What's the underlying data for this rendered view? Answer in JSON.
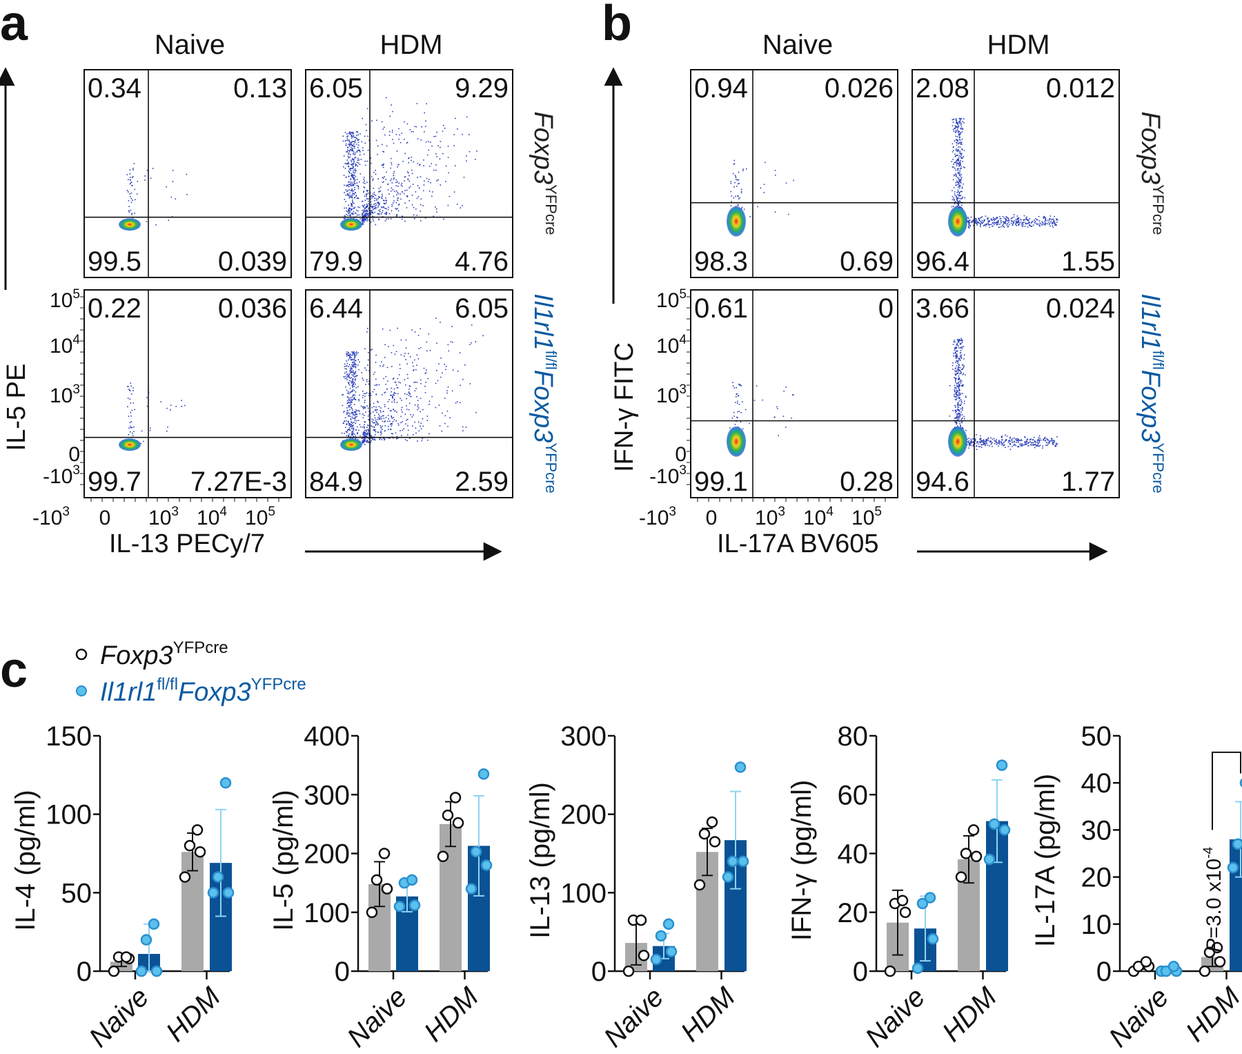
{
  "panels": {
    "a": "a",
    "b": "b",
    "c": "c"
  },
  "flow": {
    "col_headers": [
      "Naive",
      "HDM"
    ],
    "row_labels": [
      {
        "name": "Foxp3",
        "sup": "YFPcre",
        "color": "#222222"
      },
      {
        "name1": "Il1rl1",
        "sup1": "fl/fl",
        "name2": "Foxp3",
        "sup2": "YFPcre",
        "color": "#0b5aa2"
      }
    ],
    "tick_labels": {
      "y": [
        "10",
        "10",
        "10",
        "0",
        "-10"
      ],
      "y_exp": [
        "5",
        "4",
        "3",
        "",
        "3"
      ],
      "x": [
        "-10",
        "0",
        "10",
        "10",
        "10"
      ],
      "x_exp": [
        "3",
        "",
        "3",
        "4",
        "5"
      ]
    },
    "a": {
      "y_label": "IL-5 PE",
      "x_label": "IL-13 PECy/7",
      "quadrants": [
        [
          [
            "0.34",
            "0.13",
            "99.5",
            "0.039"
          ],
          [
            "6.05",
            "9.29",
            "79.9",
            "4.76"
          ]
        ],
        [
          [
            "0.22",
            "0.036",
            "99.7",
            "7.27E-3"
          ],
          [
            "6.44",
            "6.05",
            "84.9",
            "2.59"
          ]
        ]
      ]
    },
    "b": {
      "y_label": "IFN-γ FITC",
      "x_label": "IL-17A BV605",
      "quadrants": [
        [
          [
            "0.94",
            "0.026",
            "98.3",
            "0.69"
          ],
          [
            "2.08",
            "0.012",
            "96.4",
            "1.55"
          ]
        ],
        [
          [
            "0.61",
            "0",
            "99.1",
            "0.28"
          ],
          [
            "3.66",
            "0.024",
            "94.6",
            "1.77"
          ]
        ]
      ]
    }
  },
  "legend": [
    {
      "name": "Foxp3",
      "sup": "YFPcre",
      "color": "#ffffff"
    },
    {
      "name1": "Il1rl1",
      "sup1": "fl/fl",
      "name2": "Foxp3",
      "sup2": "YFPcre",
      "color": "#5bc0eb"
    }
  ],
  "colors": {
    "bar_ctrl": "#a9a9a9",
    "bar_ko": "#0a5294",
    "pt_ko": "#5bc0eb",
    "err_ko": "#8fd3f4",
    "legend_ko_text": "#0b5aa2"
  },
  "chart_data": [
    {
      "type": "bar",
      "ylabel": "IL-4 (pg/ml)",
      "ylim": [
        0,
        150
      ],
      "yticks": [
        "0",
        "50",
        "100",
        "150"
      ],
      "categories": [
        "Naive",
        "HDM"
      ],
      "series": [
        {
          "name": "Foxp3 YFPcre",
          "means": [
            6,
            76
          ],
          "sd": [
            3,
            12
          ],
          "points": [
            [
              0,
              8,
              9,
              9
            ],
            [
              60,
              76,
              80,
              90
            ]
          ]
        },
        {
          "name": "Il1rl1 fl/fl Foxp3 YFPcre",
          "means": [
            11,
            69
          ],
          "sd": [
            19,
            34
          ],
          "points": [
            [
              0,
              0,
              20,
              30
            ],
            [
              50,
              50,
              60,
              120
            ]
          ]
        }
      ]
    },
    {
      "type": "bar",
      "ylabel": "IL-5 (pg/ml)",
      "ylim": [
        0,
        400
      ],
      "yticks": [
        "0",
        "100",
        "200",
        "300",
        "400"
      ],
      "categories": [
        "Naive",
        "HDM"
      ],
      "series": [
        {
          "name": "Foxp3 YFPcre",
          "means": [
            148,
            250
          ],
          "sd": [
            38,
            38
          ],
          "points": [
            [
              100,
              140,
              155,
              200
            ],
            [
              195,
              252,
              265,
              295
            ]
          ]
        },
        {
          "name": "Il1rl1 fl/fl Foxp3 YFPcre",
          "means": [
            127,
            213
          ],
          "sd": [
            26,
            85
          ],
          "points": [
            [
              110,
              112,
              150,
              155
            ],
            [
              140,
              180,
              203,
              335
            ]
          ]
        }
      ]
    },
    {
      "type": "bar",
      "ylabel": "IL-13 (pg/ml)",
      "ylim": [
        0,
        300
      ],
      "yticks": [
        "0",
        "100",
        "200",
        "300"
      ],
      "categories": [
        "Naive",
        "HDM"
      ],
      "series": [
        {
          "name": "Foxp3 YFPcre",
          "means": [
            36,
            152
          ],
          "sd": [
            28,
            30
          ],
          "points": [
            [
              0,
              20,
              65,
              65
            ],
            [
              110,
              165,
              175,
              190
            ]
          ]
        },
        {
          "name": "Il1rl1 fl/fl Foxp3 YFPcre",
          "means": [
            32,
            167
          ],
          "sd": [
            16,
            62
          ],
          "points": [
            [
              15,
              25,
              45,
              60
            ],
            [
              120,
              140,
              140,
              260
            ]
          ]
        }
      ]
    },
    {
      "type": "bar",
      "ylabel": "IFN-γ (pg/ml)",
      "ylim": [
        0,
        80
      ],
      "yticks": [
        "0",
        "20",
        "40",
        "60",
        "80"
      ],
      "categories": [
        "Naive",
        "HDM"
      ],
      "series": [
        {
          "name": "Foxp3 YFPcre",
          "means": [
            16.5,
            38
          ],
          "sd": [
            11,
            8
          ],
          "points": [
            [
              0,
              20,
              23,
              24
            ],
            [
              32,
              39,
              40,
              48
            ]
          ]
        },
        {
          "name": "Il1rl1 fl/fl Foxp3 YFPcre",
          "means": [
            14.5,
            51
          ],
          "sd": [
            11,
            14
          ],
          "points": [
            [
              1,
              11,
              23,
              25
            ],
            [
              38,
              48,
              50,
              70
            ]
          ]
        }
      ]
    },
    {
      "type": "bar",
      "ylabel": "IL-17A (pg/ml)",
      "ylim": [
        0,
        50
      ],
      "yticks": [
        "0",
        "10",
        "20",
        "30",
        "40",
        "50"
      ],
      "categories": [
        "Naive",
        "HDM"
      ],
      "series": [
        {
          "name": "Foxp3 YFPcre",
          "means": [
            1,
            3
          ],
          "sd": [
            0.5,
            2
          ],
          "points": [
            [
              0,
              1,
              1,
              2
            ],
            [
              0,
              2,
              4,
              5
            ]
          ]
        },
        {
          "name": "Il1rl1 fl/fl Foxp3 YFPcre",
          "means": [
            0.5,
            28
          ],
          "sd": [
            0.5,
            8
          ],
          "points": [
            [
              0,
              0,
              0,
              1
            ],
            [
              22,
              24,
              27,
              40
            ]
          ]
        }
      ],
      "annotation": {
        "text": "P=3.0 x10",
        "exp": "-4",
        "between": "HDM Foxp3 vs HDM Il1rl1"
      }
    }
  ]
}
